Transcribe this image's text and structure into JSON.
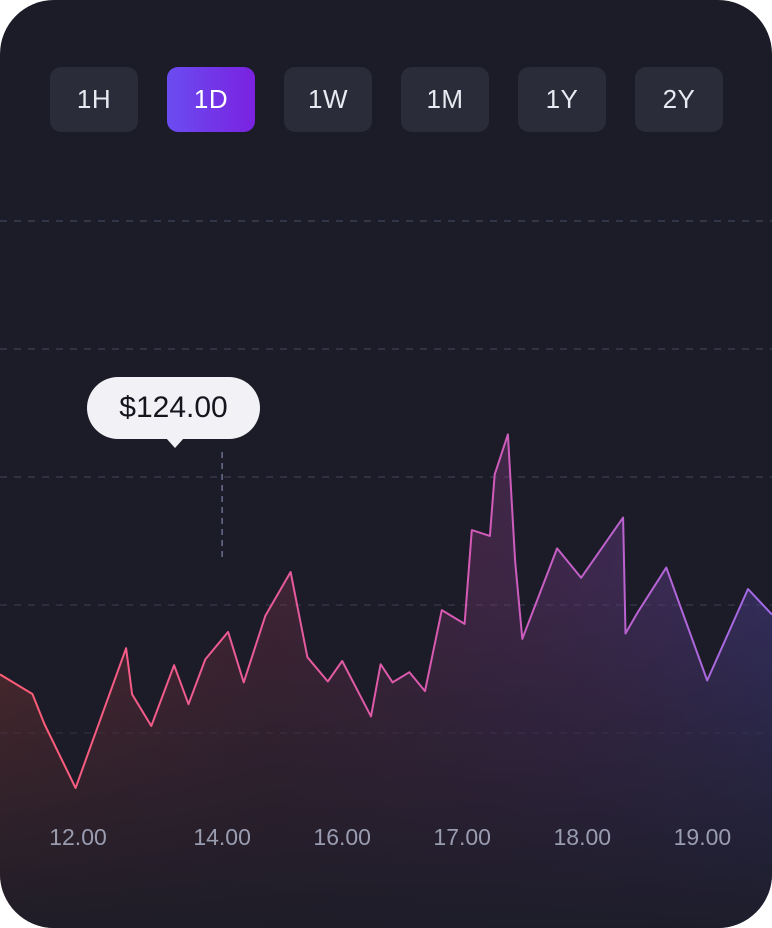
{
  "timeframe_tabs": [
    {
      "label": "1H",
      "active": false
    },
    {
      "label": "1D",
      "active": true
    },
    {
      "label": "1W",
      "active": false
    },
    {
      "label": "1M",
      "active": false
    },
    {
      "label": "1Y",
      "active": false
    },
    {
      "label": "2Y",
      "active": false
    }
  ],
  "tooltip": {
    "value": "$124.00",
    "x": 13.2
  },
  "colors": {
    "background": "#1b1c27",
    "tab_background": "#2a2c39",
    "tab_active_start": "#6a4cf0",
    "tab_active_end": "#7a22e0",
    "line_start": "#ff5c74",
    "line_mid": "#d659b4",
    "line_end": "#a06be8",
    "grid": "#3d3f55",
    "axis_text": "#9a9cb0"
  },
  "chart_data": {
    "type": "area",
    "x_tick_labels": [
      "12.00",
      "14.00",
      "16.00",
      "17.00",
      "18.00",
      "19.00"
    ],
    "x_tick_positions": [
      12,
      13.2,
      14.2,
      15.2,
      16.2,
      17.2
    ],
    "xlim": [
      11.35,
      17.78
    ],
    "grid": true,
    "legend": "none",
    "series": [
      {
        "points": [
          [
            11.35,
            53.3
          ],
          [
            11.62,
            47.2
          ],
          [
            11.72,
            37.8
          ],
          [
            11.98,
            17.8
          ],
          [
            12.4,
            61.5
          ],
          [
            12.45,
            47.1
          ],
          [
            12.61,
            37.2
          ],
          [
            12.8,
            56.2
          ],
          [
            12.92,
            44.0
          ],
          [
            13.06,
            58.0
          ],
          [
            13.25,
            66.6
          ],
          [
            13.38,
            50.8
          ],
          [
            13.56,
            71.6
          ],
          [
            13.77,
            85.3
          ],
          [
            13.91,
            58.7
          ],
          [
            14.08,
            51.1
          ],
          [
            14.2,
            57.5
          ],
          [
            14.44,
            40.2
          ],
          [
            14.52,
            56.5
          ],
          [
            14.62,
            50.8
          ],
          [
            14.76,
            54.0
          ],
          [
            14.89,
            48.1
          ],
          [
            15.03,
            73.4
          ],
          [
            15.22,
            69.1
          ],
          [
            15.28,
            98.4
          ],
          [
            15.43,
            96.6
          ],
          [
            15.47,
            115.8
          ],
          [
            15.58,
            128.3
          ],
          [
            15.64,
            88.8
          ],
          [
            15.7,
            64.4
          ],
          [
            15.99,
            92.7
          ],
          [
            16.19,
            83.5
          ],
          [
            16.54,
            102.3
          ],
          [
            16.56,
            66.1
          ],
          [
            16.66,
            72.6
          ],
          [
            16.9,
            86.7
          ],
          [
            17.24,
            51.4
          ],
          [
            17.58,
            80.0
          ],
          [
            17.78,
            72.0
          ]
        ]
      }
    ]
  }
}
